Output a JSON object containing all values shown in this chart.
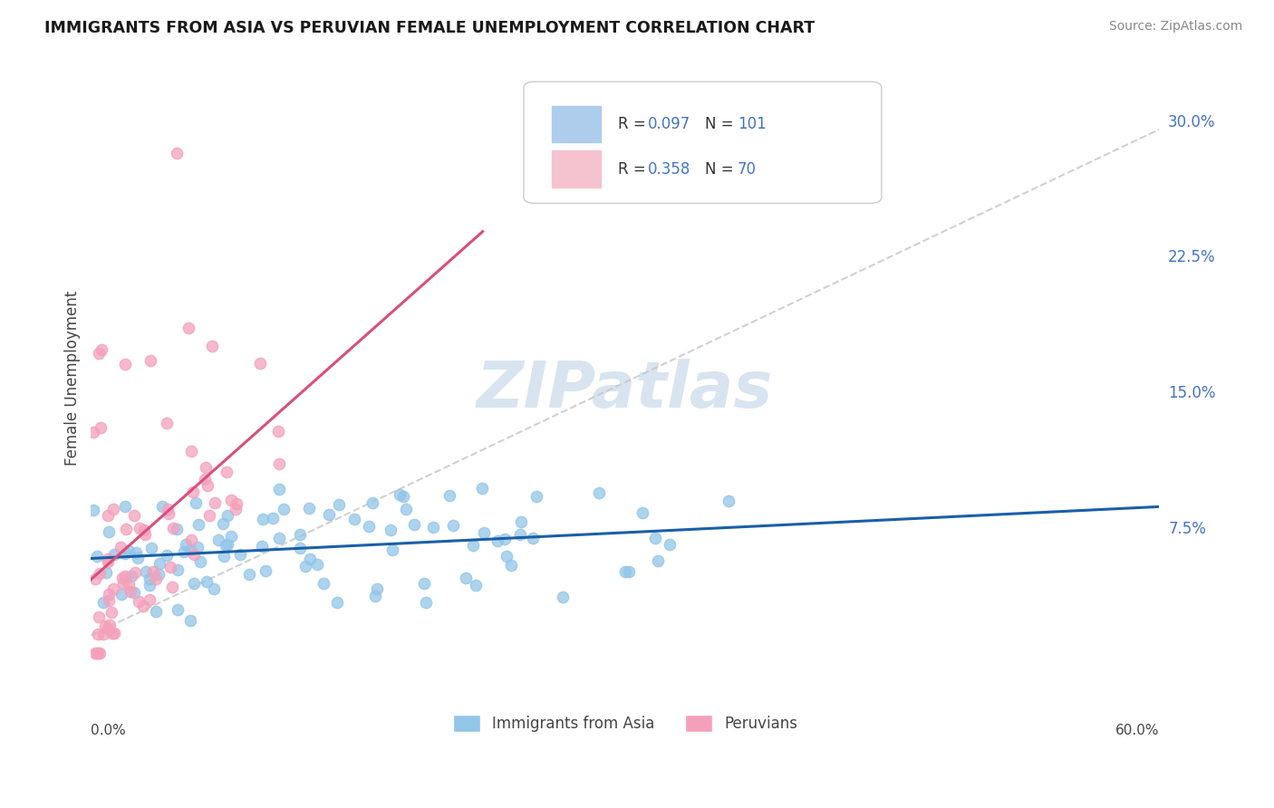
{
  "title": "IMMIGRANTS FROM ASIA VS PERUVIAN FEMALE UNEMPLOYMENT CORRELATION CHART",
  "source_text": "Source: ZipAtlas.com",
  "ylabel": "Female Unemployment",
  "ytick_values": [
    0.0,
    0.075,
    0.15,
    0.225,
    0.3
  ],
  "ytick_labels": [
    "",
    "7.5%",
    "15.0%",
    "22.5%",
    "30.0%"
  ],
  "xlim": [
    0.0,
    0.6
  ],
  "ylim": [
    -0.015,
    0.33
  ],
  "legend_bottom": [
    "Immigrants from Asia",
    "Peruvians"
  ],
  "series1_color": "#92c5e8",
  "series2_color": "#f4a0bb",
  "trendline1_color": "#1a5fa8",
  "trendline2_color": "#d94f7a",
  "dashed_line_color": "#c8c8c8",
  "watermark_text": "ZIPatlas",
  "watermark_color": "#d8e4f0",
  "grid_color": "#d0d0d0",
  "background_color": "#ffffff",
  "legend_sq1_color": "#aecded",
  "legend_sq2_color": "#f5c2cf",
  "legend_text_color": "#333333",
  "legend_num_color": "#4472c4",
  "title_color": "#1a1a1a",
  "source_color": "#888888",
  "ylabel_color": "#444444",
  "bottom_label_color": "#444444",
  "s1_R": 0.097,
  "s1_N": 101,
  "s2_R": 0.358,
  "s2_N": 70
}
